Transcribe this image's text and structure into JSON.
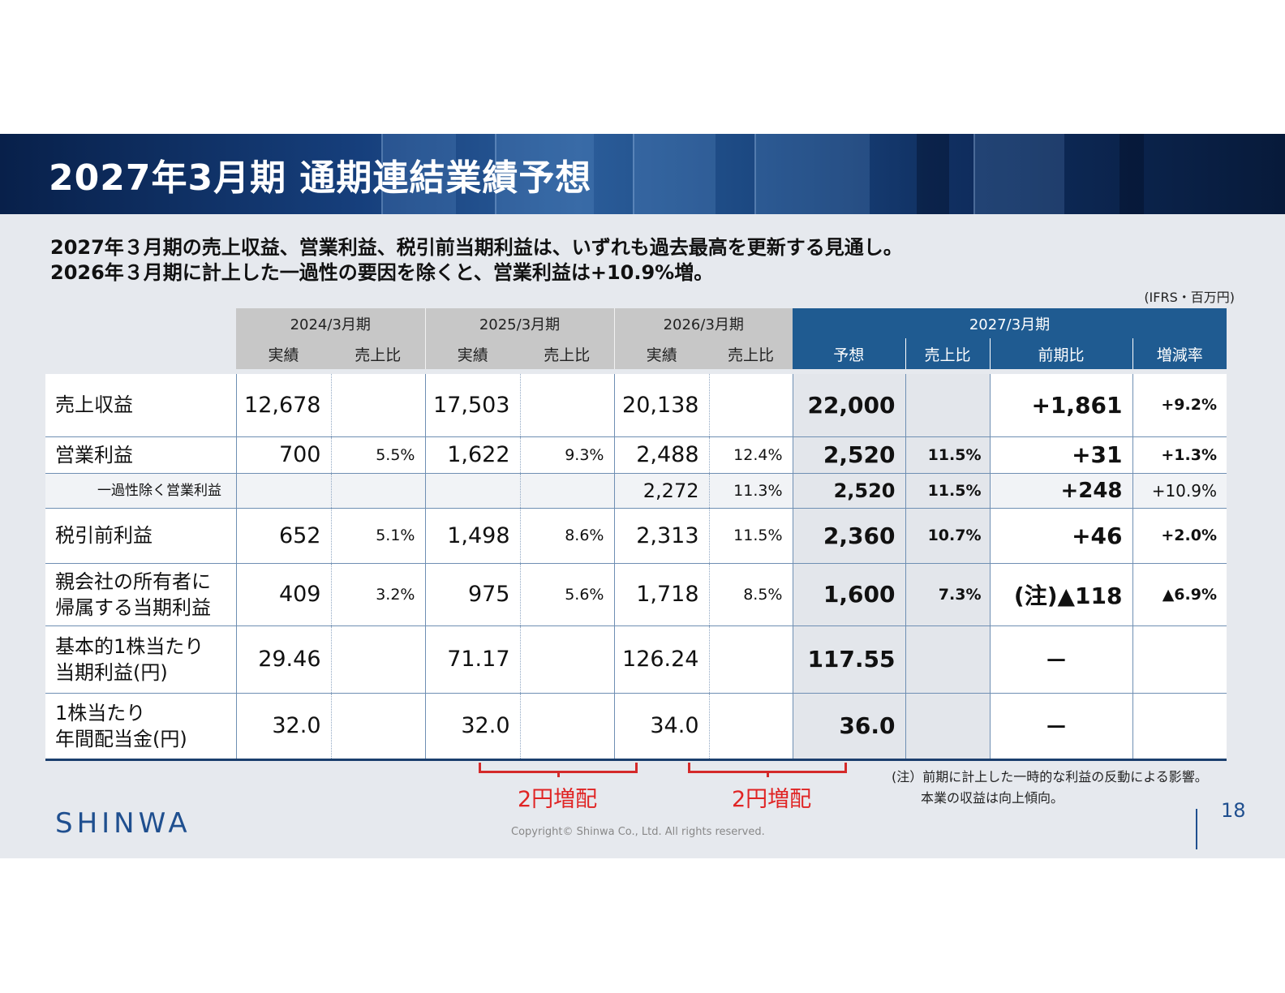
{
  "title": "2027年3月期 通期連結業績予想",
  "lead": {
    "line1": "2027年３月期の売上収益、営業利益、税引前当期利益は、いずれも過去最高を更新する見通し。",
    "line2": "2026年３月期に計上した一過性の要因を除くと、営業利益は+10.9%増。"
  },
  "unit_note": "(IFRS・百万円)",
  "table": {
    "periods": [
      "2024/3月期",
      "2025/3月期",
      "2026/3月期",
      "2027/3月期"
    ],
    "subheaders": {
      "actual": "実績",
      "ratio": "売上比",
      "forecast": "予想",
      "yoy": "前期比",
      "rate": "増減率"
    },
    "rows": [
      {
        "label": "売上収益",
        "v2024": "12,678",
        "r2024": "",
        "v2025": "17,503",
        "r2025": "",
        "v2026": "20,138",
        "r2026": "",
        "f2027": "22,000",
        "fr2027": "",
        "yoy": "+1,861",
        "rate": "+9.2%"
      },
      {
        "label": "営業利益",
        "v2024": "700",
        "r2024": "5.5%",
        "v2025": "1,622",
        "r2025": "9.3%",
        "v2026": "2,488",
        "r2026": "12.4%",
        "f2027": "2,520",
        "fr2027": "11.5%",
        "yoy": "+31",
        "rate": "+1.3%"
      },
      {
        "label": "一過性除く営業利益",
        "v2024": "",
        "r2024": "",
        "v2025": "",
        "r2025": "",
        "v2026": "2,272",
        "r2026": "11.3%",
        "f2027": "2,520",
        "fr2027": "11.5%",
        "yoy": "+248",
        "rate": "+10.9%"
      },
      {
        "label": "税引前利益",
        "v2024": "652",
        "r2024": "5.1%",
        "v2025": "1,498",
        "r2025": "8.6%",
        "v2026": "2,313",
        "r2026": "11.5%",
        "f2027": "2,360",
        "fr2027": "10.7%",
        "yoy": "+46",
        "rate": "+2.0%"
      },
      {
        "label1": "親会社の所有者に",
        "label2": "帰属する当期利益",
        "v2024": "409",
        "r2024": "3.2%",
        "v2025": "975",
        "r2025": "5.6%",
        "v2026": "1,718",
        "r2026": "8.5%",
        "f2027": "1,600",
        "fr2027": "7.3%",
        "yoy": "(注)▲118",
        "rate": "▲6.9%"
      },
      {
        "label1": "基本的1株当たり",
        "label2": "当期利益(円)",
        "v2024": "29.46",
        "v2025": "71.17",
        "v2026": "126.24",
        "f2027": "117.55",
        "yoy": "－"
      },
      {
        "label1": "1株当たり",
        "label2": "年間配当金(円)",
        "v2024": "32.0",
        "v2025": "32.0",
        "v2026": "34.0",
        "f2027": "36.0",
        "yoy": "－"
      }
    ]
  },
  "annotations": {
    "increase1": "2円増配",
    "increase2": "2円増配"
  },
  "footnote": {
    "line1": "(注）前期に計上した一時的な利益の反動による影響。",
    "line2": "本業の収益は向上傾向。"
  },
  "logo": "SHINWA",
  "copyright": "Copyright© Shinwa Co., Ltd. All rights reserved.",
  "page_number": "18"
}
